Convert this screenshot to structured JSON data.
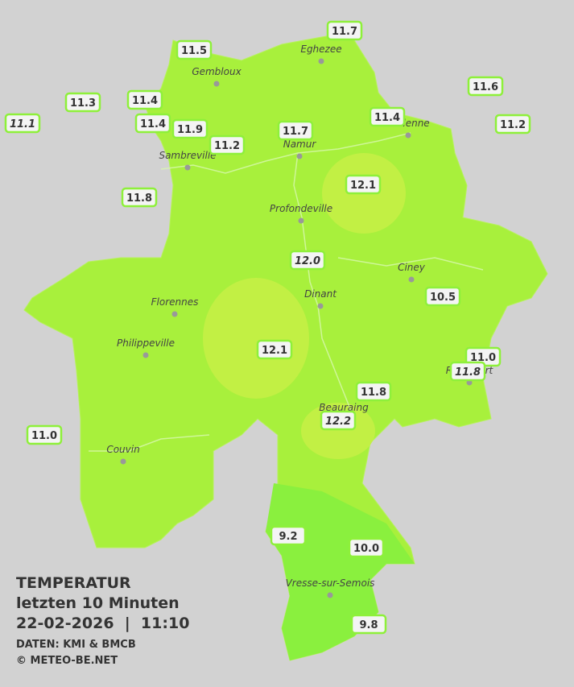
{
  "header": {
    "title": "TEMPERATUR",
    "subtitle": "letzten 10 Minuten",
    "datetime": "22-02-2026  |  11:10",
    "source": "DATEN: KMI & BMCB",
    "copyright": "© METEO-BE.NET"
  },
  "cities": [
    "Eghezee",
    "Gembloux",
    "Andenne",
    "Namur",
    "Sambreville",
    "Profondeville",
    "Ciney",
    "Florennes",
    "Dinant",
    "Philippeville",
    "Rochefort",
    "Beauraing",
    "Couvin",
    "Vresse-sur-Semois"
  ],
  "stations": [
    "11.7",
    "11.5",
    "11.6",
    "11.3",
    "11.4",
    "11.1",
    "11.4",
    "11.9",
    "11.7",
    "11.4",
    "11.2",
    "11.2",
    "12.1",
    "11.8",
    "12.0",
    "10.5",
    "12.1",
    "11.0",
    "11.8",
    "11.8",
    "12.2",
    "11.0",
    "9.2",
    "10.0",
    "9.8"
  ]
}
